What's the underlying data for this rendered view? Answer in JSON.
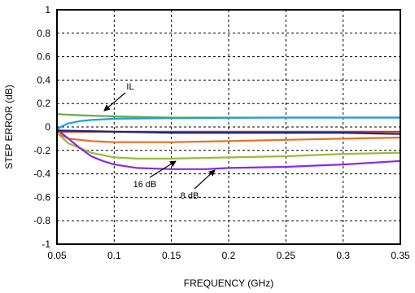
{
  "chart_data": {
    "type": "line",
    "xlabel": "FREQUENCY (GHz)",
    "ylabel": "STEP ERROR (dB)",
    "xlim": [
      0.05,
      0.35
    ],
    "ylim": [
      -1,
      1
    ],
    "x_ticks": [
      "0.05",
      "0.1",
      "0.15",
      "0.2",
      "0.25",
      "0.3",
      "0.35"
    ],
    "y_ticks": [
      "1",
      "0.8",
      "0.6",
      "0.4",
      "0.2",
      "0",
      "-0.2",
      "-0.4",
      "-0.6",
      "-0.8",
      "-1"
    ],
    "grid": true,
    "series": [
      {
        "color": "#6aa84f",
        "x": [
          0.05,
          0.07,
          0.1,
          0.15,
          0.2,
          0.25,
          0.3,
          0.35
        ],
        "y": [
          0.11,
          0.1,
          0.09,
          0.08,
          0.08,
          0.08,
          0.08,
          0.08
        ]
      },
      {
        "color": "#1ba1e2",
        "x": [
          0.05,
          0.055,
          0.06,
          0.07,
          0.08,
          0.1,
          0.15,
          0.2,
          0.25,
          0.3,
          0.35
        ],
        "y": [
          -0.02,
          0.01,
          0.03,
          0.05,
          0.06,
          0.07,
          0.075,
          0.078,
          0.08,
          0.08,
          0.08
        ]
      },
      {
        "color": "#ed6d1f",
        "x": [
          0.05,
          0.06,
          0.08,
          0.1,
          0.15,
          0.2,
          0.25,
          0.3,
          0.35
        ],
        "y": [
          -0.05,
          -0.1,
          -0.12,
          -0.13,
          -0.13,
          -0.12,
          -0.11,
          -0.1,
          -0.09
        ]
      },
      {
        "color": "#9bbb3a",
        "x": [
          0.05,
          0.06,
          0.08,
          0.1,
          0.12,
          0.15,
          0.2,
          0.25,
          0.3,
          0.35
        ],
        "y": [
          -0.05,
          -0.14,
          -0.22,
          -0.26,
          -0.27,
          -0.27,
          -0.26,
          -0.25,
          -0.23,
          -0.22
        ]
      },
      {
        "color": "#8a2be2",
        "x": [
          0.05,
          0.06,
          0.07,
          0.08,
          0.09,
          0.1,
          0.12,
          0.15,
          0.18,
          0.2,
          0.25,
          0.3,
          0.35
        ],
        "y": [
          -0.02,
          -0.1,
          -0.18,
          -0.25,
          -0.29,
          -0.32,
          -0.35,
          -0.36,
          -0.36,
          -0.35,
          -0.34,
          -0.32,
          -0.29
        ]
      },
      {
        "color": "#c0392b",
        "x": [
          0.05,
          0.1,
          0.15,
          0.2,
          0.25,
          0.3,
          0.35
        ],
        "y": [
          -0.04,
          -0.04,
          -0.04,
          -0.04,
          -0.04,
          -0.04,
          -0.04
        ]
      },
      {
        "color": "#1a237e",
        "x": [
          0.05,
          0.1,
          0.15,
          0.2,
          0.25,
          0.3,
          0.35
        ],
        "y": [
          -0.03,
          -0.04,
          -0.05,
          -0.05,
          -0.05,
          -0.05,
          -0.06
        ]
      }
    ],
    "annotations": [
      {
        "text": "IL",
        "x": 0.085,
        "y": 0.11
      },
      {
        "text": "16 dB",
        "x": 0.176,
        "y": -0.27
      },
      {
        "text": "8 dB",
        "x": 0.186,
        "y": -0.36
      }
    ]
  }
}
